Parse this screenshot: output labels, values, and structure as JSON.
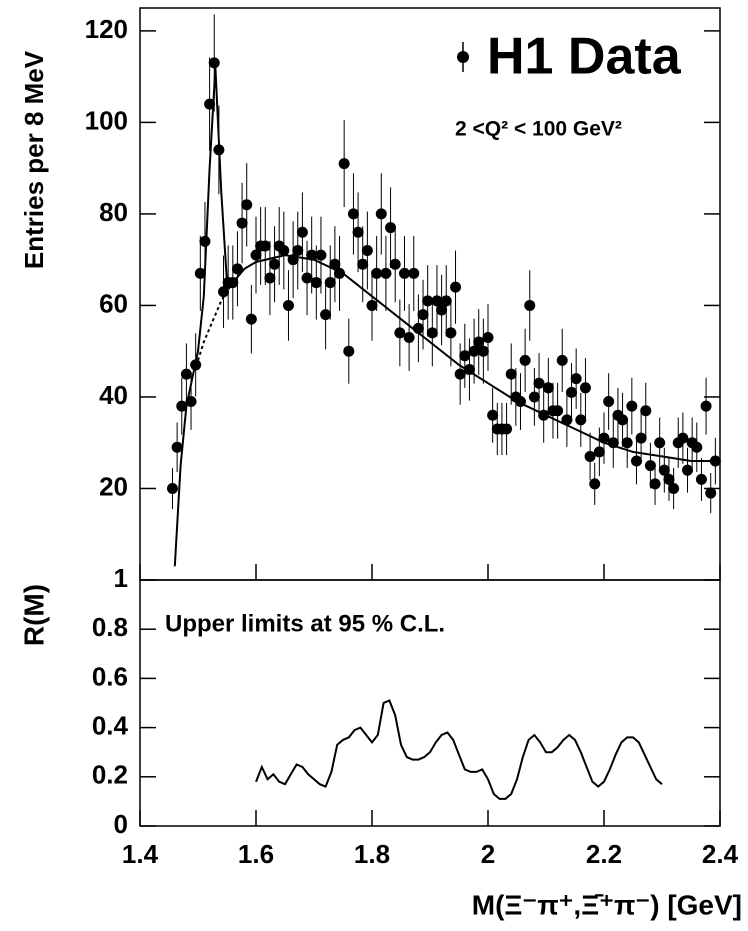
{
  "chart_data": [
    {
      "type": "errorbar",
      "ylabel": "Entries per 8 MeV",
      "annotation": "2 <Q² < 100 GeV²",
      "xlim": [
        1.4,
        2.4
      ],
      "ylim": [
        0,
        125
      ],
      "yticks": [
        20,
        40,
        60,
        80,
        100,
        120
      ],
      "x": [
        1.456,
        1.464,
        1.472,
        1.48,
        1.488,
        1.496,
        1.504,
        1.512,
        1.52,
        1.528,
        1.536,
        1.544,
        1.552,
        1.56,
        1.568,
        1.576,
        1.584,
        1.592,
        1.6,
        1.608,
        1.616,
        1.624,
        1.632,
        1.64,
        1.648,
        1.656,
        1.664,
        1.672,
        1.68,
        1.688,
        1.696,
        1.704,
        1.712,
        1.72,
        1.728,
        1.736,
        1.744,
        1.752,
        1.76,
        1.768,
        1.776,
        1.784,
        1.792,
        1.8,
        1.808,
        1.816,
        1.824,
        1.832,
        1.84,
        1.848,
        1.856,
        1.864,
        1.872,
        1.88,
        1.888,
        1.896,
        1.904,
        1.912,
        1.92,
        1.928,
        1.936,
        1.944,
        1.952,
        1.96,
        1.968,
        1.976,
        1.984,
        1.992,
        2.0,
        2.008,
        2.016,
        2.024,
        2.032,
        2.04,
        2.048,
        2.056,
        2.064,
        2.072,
        2.08,
        2.088,
        2.096,
        2.104,
        2.112,
        2.12,
        2.128,
        2.136,
        2.144,
        2.152,
        2.16,
        2.168,
        2.176,
        2.184,
        2.192,
        2.2,
        2.208,
        2.216,
        2.224,
        2.232,
        2.24,
        2.248,
        2.256,
        2.264,
        2.272,
        2.28,
        2.288,
        2.296,
        2.304,
        2.312,
        2.32,
        2.328,
        2.336,
        2.344,
        2.352,
        2.36,
        2.368,
        2.376,
        2.384,
        2.392
      ],
      "series": [
        {
          "name": "H1 Data",
          "color": "#000000",
          "values": [
            20,
            29,
            38,
            45,
            39,
            47,
            67,
            74,
            104,
            113,
            94,
            63,
            65,
            65,
            68,
            78,
            82,
            57,
            71,
            73,
            73,
            66,
            69,
            73,
            72,
            60,
            70,
            72,
            76,
            66,
            71,
            65,
            71,
            58,
            65,
            69,
            67,
            91,
            50,
            80,
            76,
            69,
            72,
            60,
            67,
            80,
            67,
            77,
            69,
            54,
            67,
            53,
            67,
            55,
            58,
            61,
            54,
            61,
            59,
            61,
            54,
            64,
            45,
            49,
            46,
            50,
            52,
            50,
            53,
            36,
            33,
            33,
            33,
            45,
            40,
            39,
            48,
            60,
            40,
            43,
            36,
            42,
            37,
            37,
            48,
            35,
            41,
            44,
            35,
            42,
            27,
            21,
            28,
            31,
            39,
            30,
            36,
            35,
            30,
            38,
            26,
            31,
            37,
            25,
            21,
            30,
            24,
            22,
            20,
            30,
            31,
            24,
            30,
            29,
            22,
            38,
            19,
            26
          ],
          "errors": [
            4.5,
            5.4,
            6.2,
            6.7,
            6.2,
            6.9,
            8.2,
            8.6,
            10.2,
            10.6,
            9.7,
            7.9,
            8.1,
            8.1,
            8.2,
            8.8,
            9.1,
            7.5,
            8.4,
            8.5,
            8.5,
            8.1,
            8.3,
            8.5,
            8.5,
            7.7,
            8.4,
            8.5,
            8.7,
            8.1,
            8.4,
            8.1,
            8.4,
            7.6,
            8.1,
            8.3,
            8.2,
            9.5,
            7.1,
            8.9,
            8.7,
            8.3,
            8.5,
            7.7,
            8.2,
            8.9,
            8.2,
            8.8,
            8.3,
            7.3,
            8.2,
            7.3,
            8.2,
            7.4,
            7.6,
            7.8,
            7.3,
            7.8,
            7.7,
            7.8,
            7.3,
            8.0,
            6.7,
            7.0,
            6.8,
            7.1,
            7.2,
            7.1,
            7.3,
            6.0,
            5.7,
            5.7,
            5.7,
            6.7,
            6.3,
            6.2,
            6.9,
            7.7,
            6.3,
            6.6,
            6.0,
            6.5,
            6.1,
            6.1,
            6.9,
            5.9,
            6.4,
            6.6,
            5.9,
            6.5,
            5.2,
            4.6,
            5.3,
            5.6,
            6.2,
            5.5,
            6.0,
            5.9,
            5.5,
            6.2,
            5.1,
            5.6,
            6.1,
            5.0,
            4.6,
            5.5,
            4.9,
            4.7,
            4.5,
            5.5,
            5.6,
            4.9,
            5.5,
            5.4,
            4.7,
            6.2,
            4.4,
            5.1
          ]
        }
      ],
      "fit": {
        "color": "#000000",
        "x": [
          1.46,
          1.47,
          1.48,
          1.49,
          1.5,
          1.51,
          1.52,
          1.53,
          1.54,
          1.55,
          1.56,
          1.58,
          1.6,
          1.65,
          1.7,
          1.75,
          1.8,
          1.85,
          1.9,
          1.95,
          2.0,
          2.05,
          2.1,
          2.15,
          2.2,
          2.25,
          2.3,
          2.35,
          2.4
        ],
        "values": [
          3,
          25,
          38,
          44,
          50,
          62,
          90,
          112,
          85,
          65,
          65,
          68,
          69.5,
          71,
          70,
          67,
          62,
          57,
          52,
          47,
          43,
          39,
          36,
          33,
          30,
          28,
          27,
          26,
          26
        ]
      },
      "background": {
        "color": "#000000",
        "dashed": true,
        "x": [
          1.5,
          1.51,
          1.52,
          1.53,
          1.54,
          1.55,
          1.56
        ],
        "values": [
          48,
          52,
          55,
          58,
          61,
          63,
          65
        ]
      }
    },
    {
      "type": "line",
      "ylabel": "R(M)",
      "xlabel": "M(Ξ⁻π⁺,Ξ̄⁺π⁻) [GeV]",
      "annotation": "Upper limits at 95 % C.L.",
      "xlim": [
        1.4,
        2.4
      ],
      "ylim": [
        0,
        1
      ],
      "xticks": [
        1.4,
        1.6,
        1.8,
        2,
        2.2,
        2.4
      ],
      "yticks": [
        0,
        0.2,
        0.4,
        0.6,
        0.8,
        1
      ],
      "color": "#000000",
      "x": [
        1.6,
        1.61,
        1.62,
        1.63,
        1.64,
        1.65,
        1.66,
        1.67,
        1.68,
        1.69,
        1.7,
        1.71,
        1.72,
        1.73,
        1.74,
        1.75,
        1.76,
        1.77,
        1.78,
        1.79,
        1.8,
        1.81,
        1.82,
        1.83,
        1.84,
        1.85,
        1.86,
        1.87,
        1.88,
        1.89,
        1.9,
        1.91,
        1.92,
        1.93,
        1.94,
        1.95,
        1.96,
        1.97,
        1.98,
        1.99,
        2.0,
        2.01,
        2.02,
        2.03,
        2.04,
        2.05,
        2.06,
        2.07,
        2.08,
        2.09,
        2.1,
        2.11,
        2.12,
        2.13,
        2.14,
        2.15,
        2.16,
        2.17,
        2.18,
        2.19,
        2.2,
        2.21,
        2.22,
        2.23,
        2.24,
        2.25,
        2.26,
        2.27,
        2.28,
        2.29,
        2.3
      ],
      "values": [
        0.18,
        0.24,
        0.19,
        0.21,
        0.18,
        0.17,
        0.21,
        0.25,
        0.24,
        0.21,
        0.19,
        0.17,
        0.16,
        0.22,
        0.33,
        0.35,
        0.36,
        0.39,
        0.4,
        0.37,
        0.34,
        0.37,
        0.5,
        0.51,
        0.45,
        0.33,
        0.28,
        0.27,
        0.27,
        0.28,
        0.3,
        0.34,
        0.37,
        0.38,
        0.35,
        0.29,
        0.23,
        0.22,
        0.22,
        0.23,
        0.19,
        0.13,
        0.11,
        0.11,
        0.13,
        0.19,
        0.28,
        0.35,
        0.37,
        0.34,
        0.3,
        0.3,
        0.32,
        0.35,
        0.37,
        0.35,
        0.3,
        0.24,
        0.18,
        0.16,
        0.18,
        0.23,
        0.29,
        0.34,
        0.36,
        0.36,
        0.34,
        0.29,
        0.24,
        0.19,
        0.17
      ]
    }
  ]
}
